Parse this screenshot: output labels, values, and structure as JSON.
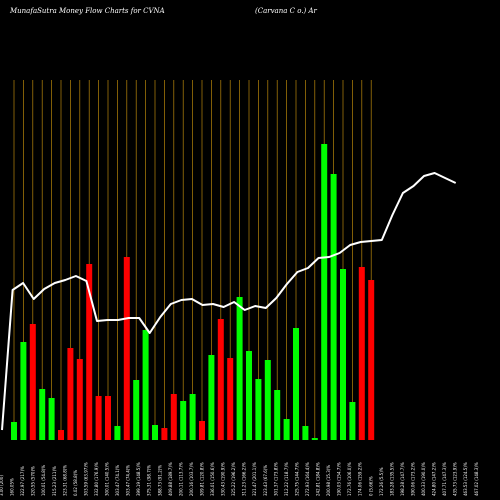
{
  "header": {
    "title_left": "MunafaSutra  Money Flow  Charts for CVNA",
    "title_right": "(Carvana  C                          o.) Ar"
  },
  "colors": {
    "background": "#000000",
    "grid": "#b8860b",
    "up_bar": "#00ff00",
    "down_bar": "#ff0000",
    "price_line": "#ffffff"
  },
  "chart_data": {
    "type": "bar",
    "grid": true,
    "bars": [
      {
        "dir": "up",
        "value": 18
      },
      {
        "dir": "up",
        "value": 98
      },
      {
        "dir": "down",
        "value": 116
      },
      {
        "dir": "up",
        "value": 51
      },
      {
        "dir": "up",
        "value": 42
      },
      {
        "dir": "down",
        "value": 10
      },
      {
        "dir": "down",
        "value": 92
      },
      {
        "dir": "down",
        "value": 81
      },
      {
        "dir": "down",
        "value": 176
      },
      {
        "dir": "down",
        "value": 44
      },
      {
        "dir": "down",
        "value": 44
      },
      {
        "dir": "up",
        "value": 14
      },
      {
        "dir": "down",
        "value": 183
      },
      {
        "dir": "up",
        "value": 60
      },
      {
        "dir": "up",
        "value": 110
      },
      {
        "dir": "up",
        "value": 15
      },
      {
        "dir": "down",
        "value": 12
      },
      {
        "dir": "down",
        "value": 46
      },
      {
        "dir": "up",
        "value": 39
      },
      {
        "dir": "up",
        "value": 46
      },
      {
        "dir": "down",
        "value": 19
      },
      {
        "dir": "up",
        "value": 85
      },
      {
        "dir": "down",
        "value": 121
      },
      {
        "dir": "down",
        "value": 82
      },
      {
        "dir": "up",
        "value": 143
      },
      {
        "dir": "up",
        "value": 89
      },
      {
        "dir": "up",
        "value": 61
      },
      {
        "dir": "up",
        "value": 80
      },
      {
        "dir": "up",
        "value": 50
      },
      {
        "dir": "up",
        "value": 21
      },
      {
        "dir": "up",
        "value": 112
      },
      {
        "dir": "up",
        "value": 14
      },
      {
        "dir": "up",
        "value": 2
      },
      {
        "dir": "up",
        "value": 296
      },
      {
        "dir": "up",
        "value": 266
      },
      {
        "dir": "up",
        "value": 171
      },
      {
        "dir": "up",
        "value": 38
      },
      {
        "dir": "down",
        "value": 173
      },
      {
        "dir": "down",
        "value": 160
      }
    ],
    "price_line": [
      0,
      140,
      147,
      131,
      141,
      147,
      150,
      154,
      149,
      109,
      110,
      110,
      112,
      112,
      97,
      113,
      126,
      130,
      131,
      125,
      126,
      123,
      128,
      120,
      124,
      122,
      132,
      146,
      158,
      162,
      172,
      173,
      177,
      185,
      188,
      189,
      190,
      215,
      237,
      244,
      254,
      257,
      252,
      247
    ],
    "x_labels": [
      "3.00 (200)",
      "160.05%",
      "322.97 (217)%",
      "320.55 (570)%",
      "100.01 (54.8)%",
      "315.23 (211)%",
      "323.31 (68.8)%",
      "0.02 (58.8)%",
      "303.59 (63.97)%",
      "332.80 (176.9)%",
      "300.01 (140.5)%",
      "303.47 (74.1)%",
      "303.47 (74.4)%",
      "399.19 (148.5)%",
      "375.31 (98.7)%",
      "388.73 (91.2)%",
      "409.88 (189.7)%",
      "200.11 (113.7)%",
      "200.16 (103.7)%",
      "309.81 (120.8)%",
      "336.01 (150.6)%",
      "330.43 (190.9)%",
      "325.22 (196.2)%",
      "311.23 (166.2)%",
      "321.47 (201.1)%",
      "323.43 (67.6)%",
      "301.37 (173.8)%",
      "312.22 (118.7)%",
      "325.75 (144.7)%",
      "272.93 (164.4)%",
      "242.81 (184.8)%",
      "200.98 (15.3)%",
      "190.03 (154.7)%",
      "172.76 (106.0)%",
      "174.06 (159.2)%",
      "0 (5.66)%",
      "172.26 (5.5)%",
      "183.28 (135.5)%",
      "198.28 (147.7)%",
      "390.06 (173.2)%",
      "400.33 (190.0)%",
      "424.80 (147.2)%",
      "407.71 (147.3)%",
      "435.73 (123.9)%",
      "463.53 (124.5)%",
      "467.02 (148.3)%"
    ]
  }
}
